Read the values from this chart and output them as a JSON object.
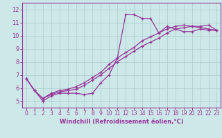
{
  "xlabel": "Windchill (Refroidissement éolien,°C)",
  "ylabel": "",
  "bg_color": "#cce8e8",
  "grid_color": "#aacccc",
  "line_color": "#993399",
  "axis_color": "#993399",
  "xlim": [
    -0.5,
    23.5
  ],
  "ylim": [
    4.5,
    12.5
  ],
  "xticks": [
    0,
    1,
    2,
    3,
    4,
    5,
    6,
    7,
    8,
    9,
    10,
    11,
    12,
    13,
    14,
    15,
    16,
    17,
    18,
    19,
    20,
    21,
    22,
    23
  ],
  "yticks": [
    5,
    6,
    7,
    8,
    9,
    10,
    11,
    12
  ],
  "line1_x": [
    0,
    1,
    2,
    3,
    4,
    5,
    6,
    7,
    8,
    9,
    10,
    11,
    12,
    13,
    14,
    15,
    16,
    17,
    18,
    19,
    20,
    21,
    22,
    23
  ],
  "line1_y": [
    6.7,
    5.8,
    5.0,
    5.4,
    5.6,
    5.6,
    5.6,
    5.5,
    5.6,
    6.4,
    7.0,
    8.3,
    11.6,
    11.6,
    11.3,
    11.3,
    10.2,
    10.7,
    10.5,
    10.3,
    10.3,
    10.5,
    10.4,
    10.4
  ],
  "line2_x": [
    0,
    1,
    2,
    3,
    4,
    5,
    6,
    7,
    8,
    9,
    10,
    11,
    12,
    13,
    14,
    15,
    16,
    17,
    18,
    19,
    20,
    21,
    22,
    23
  ],
  "line2_y": [
    6.7,
    5.8,
    5.2,
    5.5,
    5.7,
    5.8,
    5.9,
    6.2,
    6.6,
    7.0,
    7.5,
    8.0,
    8.4,
    8.8,
    9.2,
    9.5,
    9.8,
    10.2,
    10.5,
    10.6,
    10.7,
    10.7,
    10.8,
    10.4
  ],
  "line3_x": [
    0,
    1,
    2,
    3,
    4,
    5,
    6,
    7,
    8,
    9,
    10,
    11,
    12,
    13,
    14,
    15,
    16,
    17,
    18,
    19,
    20,
    21,
    22,
    23
  ],
  "line3_y": [
    6.7,
    5.8,
    5.2,
    5.6,
    5.8,
    5.9,
    6.1,
    6.4,
    6.8,
    7.2,
    7.8,
    8.3,
    8.7,
    9.1,
    9.6,
    9.9,
    10.2,
    10.5,
    10.7,
    10.8,
    10.7,
    10.6,
    10.5,
    10.4
  ]
}
